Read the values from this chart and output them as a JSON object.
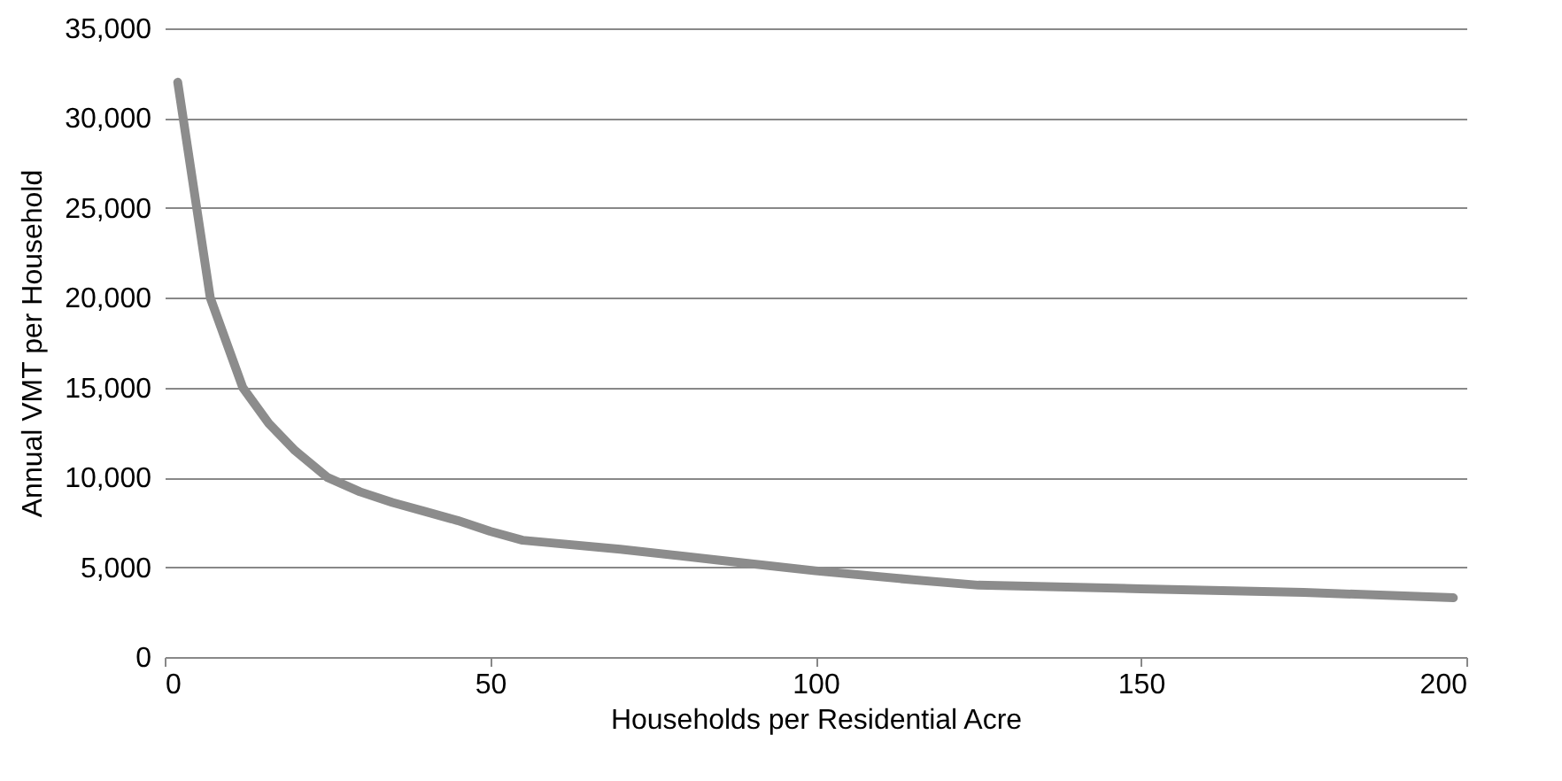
{
  "chart_data": {
    "type": "line",
    "xlabel": "Households per Residential Acre",
    "ylabel": "Annual VMT per Household",
    "x": [
      2,
      7,
      12,
      16,
      20,
      25,
      30,
      35,
      40,
      45,
      50,
      55,
      70,
      85,
      100,
      115,
      125,
      150,
      175,
      198
    ],
    "series": [
      {
        "color": "#8c8c8c",
        "values": [
          32000,
          20000,
          15000,
          13000,
          11500,
          10000,
          9200,
          8600,
          8100,
          7600,
          7000,
          6500,
          6000,
          5400,
          4800,
          4300,
          4000,
          3800,
          3600,
          3300
        ]
      }
    ],
    "xlim": [
      0,
      200
    ],
    "xticks": [
      0,
      50,
      100,
      150,
      200
    ],
    "ylim": [
      0,
      35000
    ],
    "yticks": [
      0,
      {
        "value": 5000,
        "label": "5,000"
      },
      {
        "value": 10000,
        "label": "10,000"
      },
      {
        "value": 15000,
        "label": "15,000"
      },
      {
        "value": 20000,
        "label": "20,000"
      },
      {
        "value": 25000,
        "label": "25,000"
      },
      {
        "value": 30000,
        "label": "30,000"
      },
      {
        "value": 35000,
        "label": "35,000"
      }
    ],
    "grid": "y",
    "legend": false,
    "marker": "none",
    "line_style": "solid"
  }
}
